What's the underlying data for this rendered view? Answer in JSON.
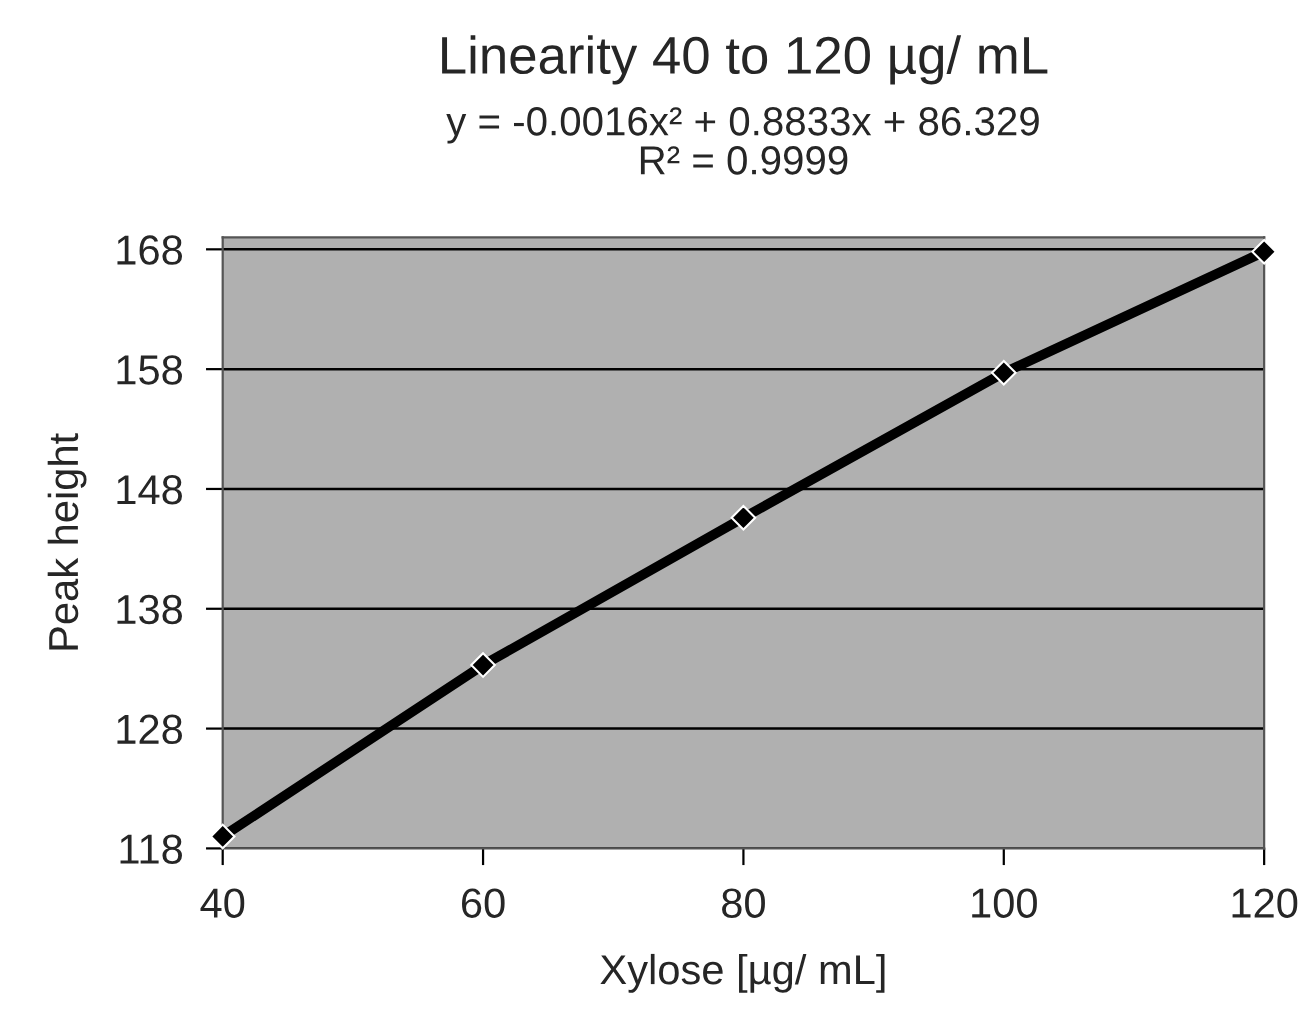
{
  "chart_data": {
    "type": "line",
    "title": "Linearity 40 to 120 µg/ mL",
    "subtitle": "y = -0.0016x² + 0.8833x + 86.329\nR² = 0.9999",
    "xlabel": "Xylose [µg/ mL]",
    "ylabel": "Peak height",
    "x": [
      40,
      60,
      80,
      100,
      120
    ],
    "series": [
      {
        "color": "#000000",
        "values": [
          119,
          133.3,
          145.6,
          157.7,
          167.8
        ]
      }
    ],
    "xlim": [
      40,
      120
    ],
    "xticks": [
      40,
      60,
      80,
      100,
      120
    ],
    "ylim": [
      118,
      169
    ],
    "yticks": [
      118,
      128,
      138,
      148,
      158,
      168
    ],
    "grid": "y",
    "marker": "diamond",
    "line_style": "solid",
    "legend": false
  }
}
